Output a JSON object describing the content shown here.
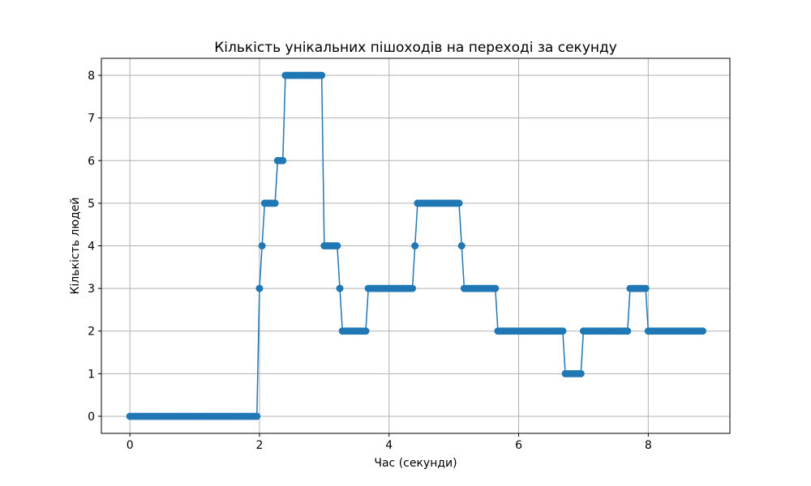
{
  "chart_data": {
    "type": "line",
    "title": "Кількість унікальних пішоходів на переході за секунду",
    "xlabel": "Час (секунди)",
    "ylabel": "Кількість людей",
    "xlim": [
      -0.44,
      9.26
    ],
    "ylim": [
      -0.4,
      8.4
    ],
    "xticks": [
      0,
      2,
      4,
      6,
      8
    ],
    "yticks": [
      0,
      1,
      2,
      3,
      4,
      5,
      6,
      7,
      8
    ],
    "grid": true,
    "marker": "circle",
    "colors": {
      "series": "#1f77b4",
      "grid": "#b0b0b0",
      "axes": "#000000"
    },
    "series": [
      {
        "points": [
          [
            0.0,
            0
          ],
          [
            0.04,
            0
          ],
          [
            0.08,
            0
          ],
          [
            0.12,
            0
          ],
          [
            0.16,
            0
          ],
          [
            0.2,
            0
          ],
          [
            0.24,
            0
          ],
          [
            0.28,
            0
          ],
          [
            0.32,
            0
          ],
          [
            0.36,
            0
          ],
          [
            0.4,
            0
          ],
          [
            0.44,
            0
          ],
          [
            0.48,
            0
          ],
          [
            0.52,
            0
          ],
          [
            0.56,
            0
          ],
          [
            0.6,
            0
          ],
          [
            0.64,
            0
          ],
          [
            0.68,
            0
          ],
          [
            0.72,
            0
          ],
          [
            0.76,
            0
          ],
          [
            0.8,
            0
          ],
          [
            0.84,
            0
          ],
          [
            0.88,
            0
          ],
          [
            0.92,
            0
          ],
          [
            0.96,
            0
          ],
          [
            1.0,
            0
          ],
          [
            1.04,
            0
          ],
          [
            1.08,
            0
          ],
          [
            1.12,
            0
          ],
          [
            1.16,
            0
          ],
          [
            1.2,
            0
          ],
          [
            1.24,
            0
          ],
          [
            1.28,
            0
          ],
          [
            1.32,
            0
          ],
          [
            1.36,
            0
          ],
          [
            1.4,
            0
          ],
          [
            1.44,
            0
          ],
          [
            1.48,
            0
          ],
          [
            1.52,
            0
          ],
          [
            1.56,
            0
          ],
          [
            1.6,
            0
          ],
          [
            1.64,
            0
          ],
          [
            1.68,
            0
          ],
          [
            1.72,
            0
          ],
          [
            1.76,
            0
          ],
          [
            1.8,
            0
          ],
          [
            1.84,
            0
          ],
          [
            1.88,
            0
          ],
          [
            1.92,
            0
          ],
          [
            1.96,
            0
          ],
          [
            2.0,
            3
          ],
          [
            2.04,
            4
          ],
          [
            2.08,
            5
          ],
          [
            2.12,
            5
          ],
          [
            2.16,
            5
          ],
          [
            2.2,
            5
          ],
          [
            2.24,
            5
          ],
          [
            2.28,
            6
          ],
          [
            2.32,
            6
          ],
          [
            2.36,
            6
          ],
          [
            2.4,
            8
          ],
          [
            2.44,
            8
          ],
          [
            2.48,
            8
          ],
          [
            2.52,
            8
          ],
          [
            2.56,
            8
          ],
          [
            2.6,
            8
          ],
          [
            2.64,
            8
          ],
          [
            2.68,
            8
          ],
          [
            2.72,
            8
          ],
          [
            2.76,
            8
          ],
          [
            2.8,
            8
          ],
          [
            2.84,
            8
          ],
          [
            2.88,
            8
          ],
          [
            2.92,
            8
          ],
          [
            2.96,
            8
          ],
          [
            3.0,
            4
          ],
          [
            3.04,
            4
          ],
          [
            3.08,
            4
          ],
          [
            3.12,
            4
          ],
          [
            3.16,
            4
          ],
          [
            3.2,
            4
          ],
          [
            3.24,
            3
          ],
          [
            3.28,
            2
          ],
          [
            3.32,
            2
          ],
          [
            3.36,
            2
          ],
          [
            3.4,
            2
          ],
          [
            3.44,
            2
          ],
          [
            3.48,
            2
          ],
          [
            3.52,
            2
          ],
          [
            3.56,
            2
          ],
          [
            3.6,
            2
          ],
          [
            3.64,
            2
          ],
          [
            3.68,
            3
          ],
          [
            3.72,
            3
          ],
          [
            3.76,
            3
          ],
          [
            3.8,
            3
          ],
          [
            3.84,
            3
          ],
          [
            3.88,
            3
          ],
          [
            3.92,
            3
          ],
          [
            3.96,
            3
          ],
          [
            4.0,
            3
          ],
          [
            4.04,
            3
          ],
          [
            4.08,
            3
          ],
          [
            4.12,
            3
          ],
          [
            4.16,
            3
          ],
          [
            4.2,
            3
          ],
          [
            4.24,
            3
          ],
          [
            4.28,
            3
          ],
          [
            4.32,
            3
          ],
          [
            4.36,
            3
          ],
          [
            4.4,
            4
          ],
          [
            4.44,
            5
          ],
          [
            4.48,
            5
          ],
          [
            4.52,
            5
          ],
          [
            4.56,
            5
          ],
          [
            4.6,
            5
          ],
          [
            4.64,
            5
          ],
          [
            4.68,
            5
          ],
          [
            4.72,
            5
          ],
          [
            4.76,
            5
          ],
          [
            4.8,
            5
          ],
          [
            4.84,
            5
          ],
          [
            4.88,
            5
          ],
          [
            4.92,
            5
          ],
          [
            4.96,
            5
          ],
          [
            5.0,
            5
          ],
          [
            5.04,
            5
          ],
          [
            5.08,
            5
          ],
          [
            5.12,
            4
          ],
          [
            5.16,
            3
          ],
          [
            5.2,
            3
          ],
          [
            5.24,
            3
          ],
          [
            5.28,
            3
          ],
          [
            5.32,
            3
          ],
          [
            5.36,
            3
          ],
          [
            5.4,
            3
          ],
          [
            5.44,
            3
          ],
          [
            5.48,
            3
          ],
          [
            5.52,
            3
          ],
          [
            5.56,
            3
          ],
          [
            5.6,
            3
          ],
          [
            5.64,
            3
          ],
          [
            5.68,
            2
          ],
          [
            5.72,
            2
          ],
          [
            5.76,
            2
          ],
          [
            5.8,
            2
          ],
          [
            5.84,
            2
          ],
          [
            5.88,
            2
          ],
          [
            5.92,
            2
          ],
          [
            5.96,
            2
          ],
          [
            6.0,
            2
          ],
          [
            6.04,
            2
          ],
          [
            6.08,
            2
          ],
          [
            6.12,
            2
          ],
          [
            6.16,
            2
          ],
          [
            6.2,
            2
          ],
          [
            6.24,
            2
          ],
          [
            6.28,
            2
          ],
          [
            6.32,
            2
          ],
          [
            6.36,
            2
          ],
          [
            6.4,
            2
          ],
          [
            6.44,
            2
          ],
          [
            6.48,
            2
          ],
          [
            6.52,
            2
          ],
          [
            6.56,
            2
          ],
          [
            6.6,
            2
          ],
          [
            6.64,
            2
          ],
          [
            6.68,
            2
          ],
          [
            6.72,
            1
          ],
          [
            6.76,
            1
          ],
          [
            6.8,
            1
          ],
          [
            6.84,
            1
          ],
          [
            6.88,
            1
          ],
          [
            6.92,
            1
          ],
          [
            6.96,
            1
          ],
          [
            7.0,
            2
          ],
          [
            7.04,
            2
          ],
          [
            7.08,
            2
          ],
          [
            7.12,
            2
          ],
          [
            7.16,
            2
          ],
          [
            7.2,
            2
          ],
          [
            7.24,
            2
          ],
          [
            7.28,
            2
          ],
          [
            7.32,
            2
          ],
          [
            7.36,
            2
          ],
          [
            7.4,
            2
          ],
          [
            7.44,
            2
          ],
          [
            7.48,
            2
          ],
          [
            7.52,
            2
          ],
          [
            7.56,
            2
          ],
          [
            7.6,
            2
          ],
          [
            7.64,
            2
          ],
          [
            7.68,
            2
          ],
          [
            7.72,
            3
          ],
          [
            7.76,
            3
          ],
          [
            7.8,
            3
          ],
          [
            7.84,
            3
          ],
          [
            7.88,
            3
          ],
          [
            7.92,
            3
          ],
          [
            7.96,
            3
          ],
          [
            8.0,
            2
          ],
          [
            8.04,
            2
          ],
          [
            8.08,
            2
          ],
          [
            8.12,
            2
          ],
          [
            8.16,
            2
          ],
          [
            8.2,
            2
          ],
          [
            8.24,
            2
          ],
          [
            8.28,
            2
          ],
          [
            8.32,
            2
          ],
          [
            8.36,
            2
          ],
          [
            8.4,
            2
          ],
          [
            8.44,
            2
          ],
          [
            8.48,
            2
          ],
          [
            8.52,
            2
          ],
          [
            8.56,
            2
          ],
          [
            8.6,
            2
          ],
          [
            8.64,
            2
          ],
          [
            8.68,
            2
          ],
          [
            8.72,
            2
          ],
          [
            8.76,
            2
          ],
          [
            8.8,
            2
          ],
          [
            8.84,
            2
          ]
        ]
      }
    ]
  }
}
